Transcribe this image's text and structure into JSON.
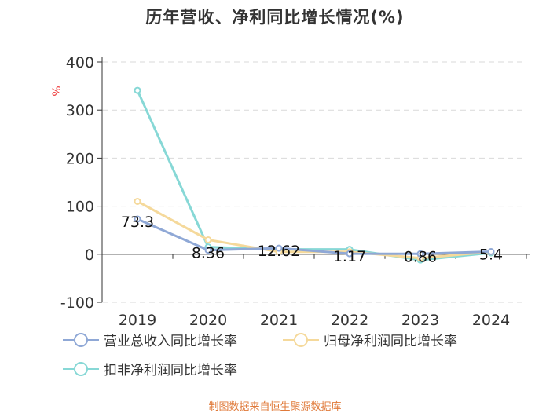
{
  "title": "历年营收、净利同比增长情况(%)",
  "footer": "制图数据来自恒生聚源数据库",
  "chart_data": {
    "type": "line",
    "title": "历年营收、净利同比增长情况(%)",
    "ylabel": "%",
    "xlabel": "",
    "ylim": [
      -100,
      400
    ],
    "yticks": [
      -100,
      0,
      100,
      200,
      300,
      400
    ],
    "grid": true,
    "categories": [
      "2019",
      "2020",
      "2021",
      "2022",
      "2023",
      "2024"
    ],
    "series": [
      {
        "name": "营业总收入同比增长率",
        "color": "#8fa8d6",
        "values": [
          73.3,
          8.36,
          12.62,
          1.17,
          0.86,
          5.4
        ],
        "labels": [
          "73.3",
          "8.36",
          "12.62",
          "1.17",
          "0.86",
          "5.4"
        ]
      },
      {
        "name": "归母净利润同比增长率",
        "color": "#f5d99b",
        "values": [
          110,
          30,
          5,
          5,
          -8,
          5
        ]
      },
      {
        "name": "扣非净利润同比增长率",
        "color": "#87d8d6",
        "values": [
          341,
          15,
          10,
          10,
          -12,
          3
        ]
      }
    ],
    "legend_position": "bottom"
  }
}
